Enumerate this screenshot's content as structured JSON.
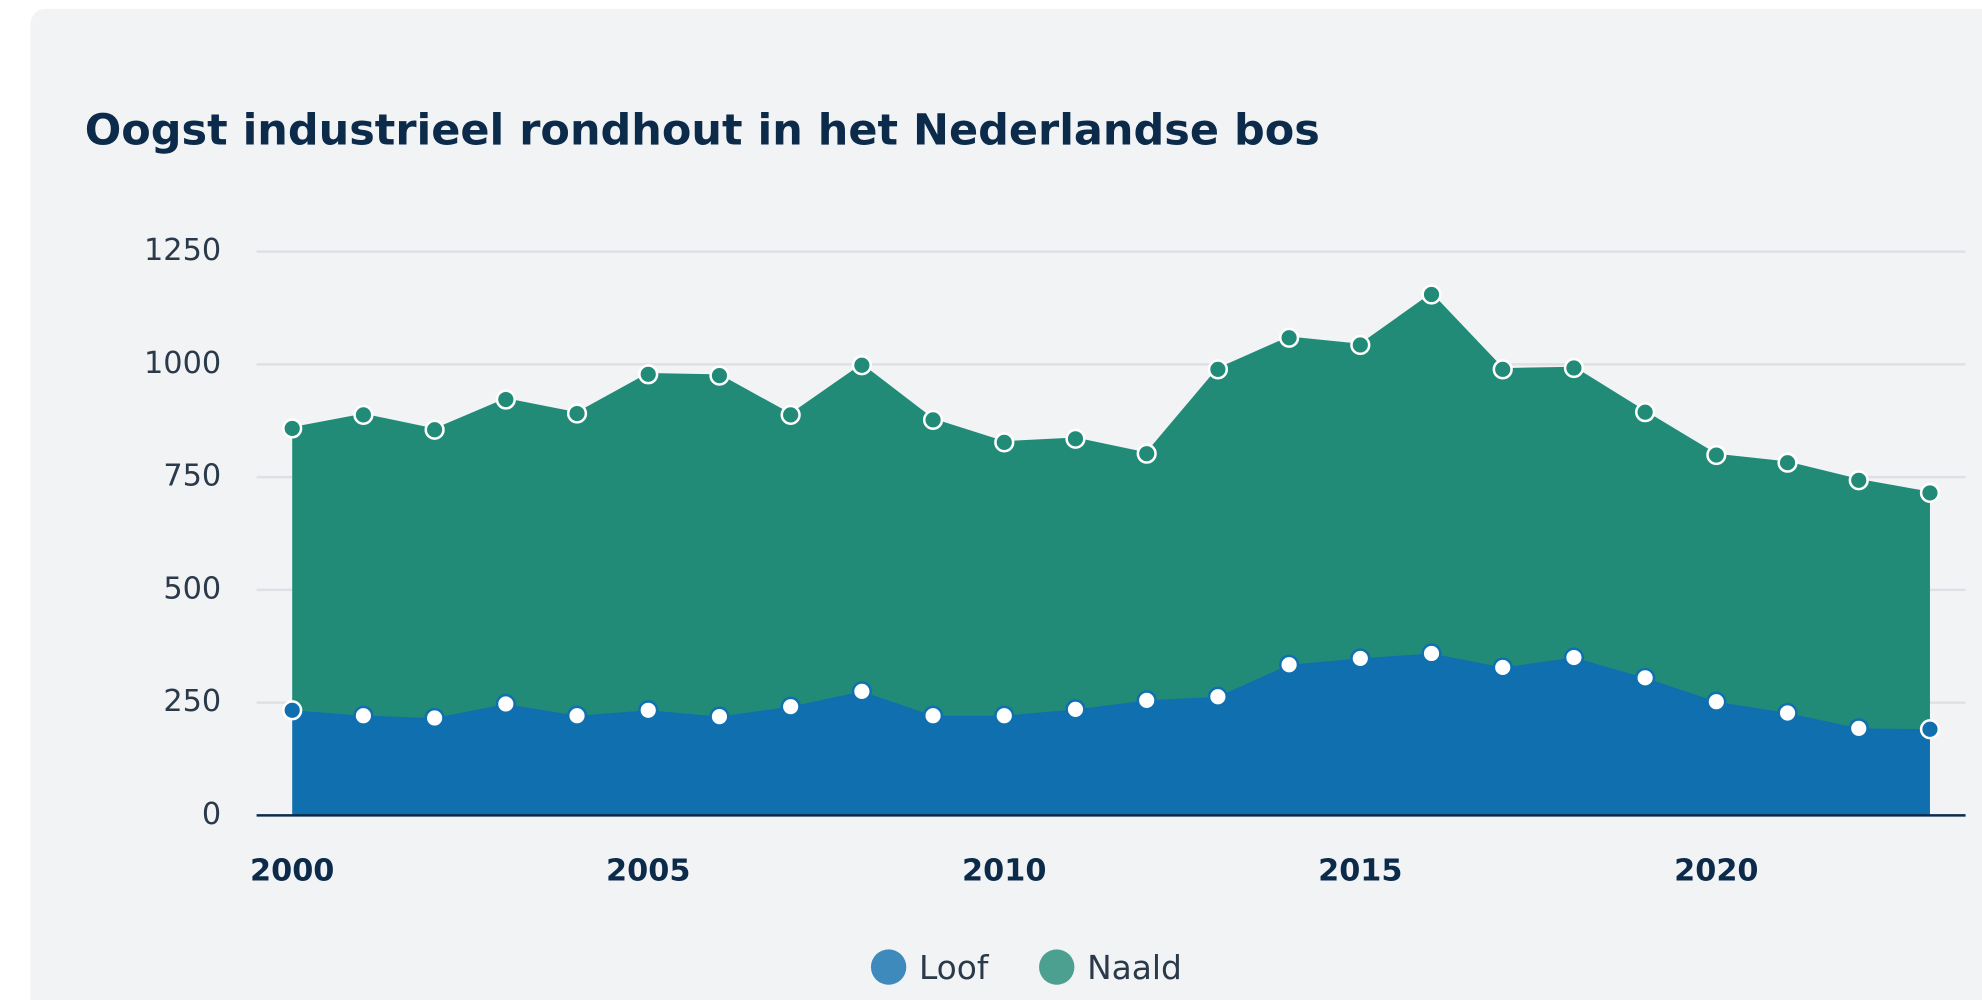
{
  "chart_data": {
    "type": "stacked_area",
    "title": "Oogst industrieel rondhout in het Nederlandse bos",
    "x": [
      2000,
      2001,
      2002,
      2003,
      2004,
      2005,
      2006,
      2007,
      2008,
      2009,
      2010,
      2011,
      2012,
      2013,
      2014,
      2015,
      2016,
      2017,
      2018,
      2019,
      2020,
      2021,
      2022,
      2023
    ],
    "series": [
      {
        "name": "Loof",
        "color": "#106fae",
        "values": [
          233,
          221,
          216,
          247,
          221,
          233,
          219,
          241,
          275,
          221,
          221,
          235,
          255,
          263,
          334,
          348,
          359,
          328,
          350,
          305,
          252,
          227,
          193,
          191
        ]
      },
      {
        "name": "Naald",
        "color": "#218b77",
        "values": [
          625,
          667,
          639,
          675,
          670,
          745,
          756,
          647,
          723,
          656,
          606,
          600,
          547,
          726,
          725,
          695,
          796,
          661,
          642,
          589,
          547,
          555,
          550,
          524
        ]
      }
    ],
    "xlim": [
      1999.5,
      2023.5
    ],
    "xticks": [
      2000,
      2005,
      2010,
      2015,
      2020
    ],
    "ylim": [
      0,
      1250
    ],
    "yticks": [
      0,
      250,
      500,
      750,
      1000,
      1250
    ],
    "grid": true,
    "legend": "bottom"
  }
}
